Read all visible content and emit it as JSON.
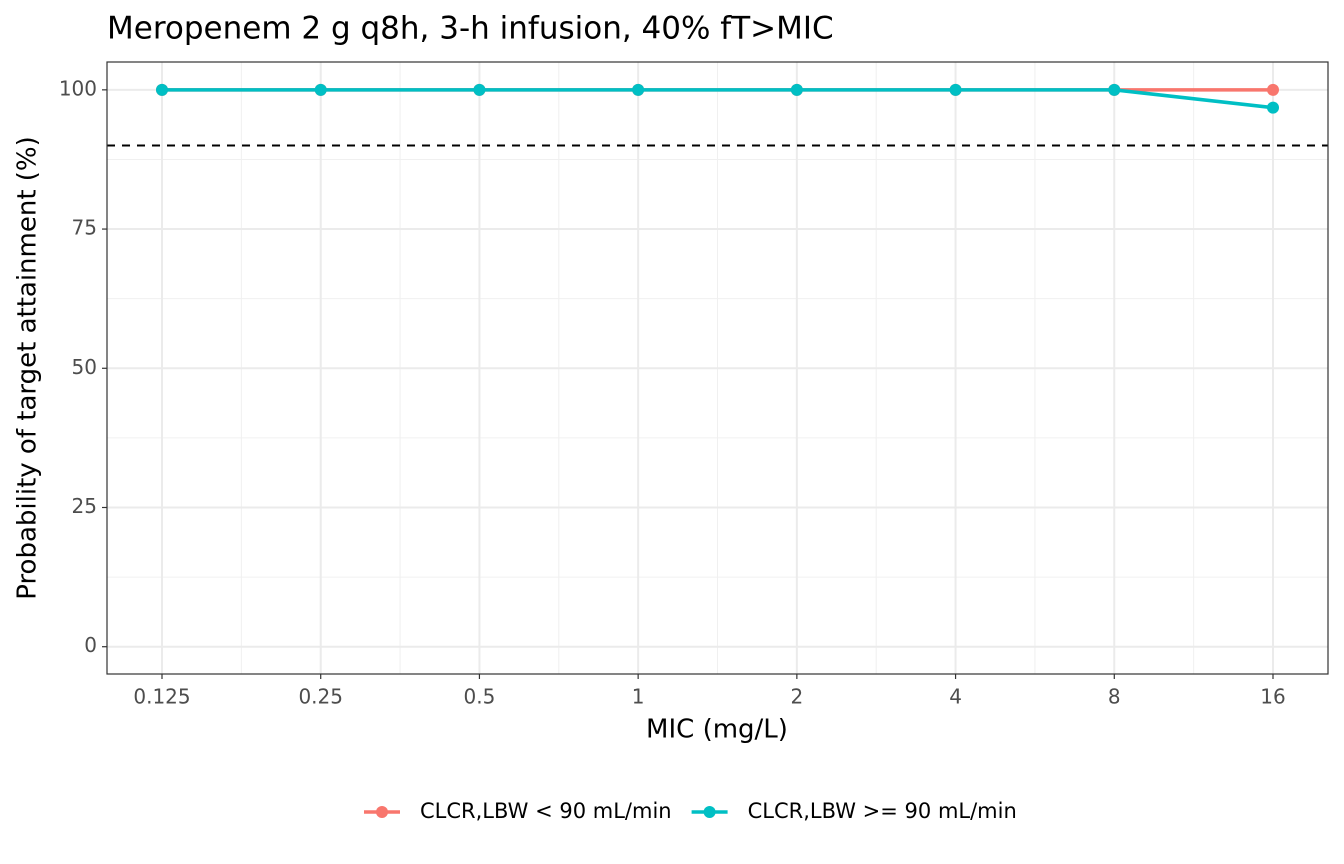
{
  "chart_data": {
    "type": "line",
    "title": "Meropenem 2 g q8h, 3-h infusion, 40% fT>MIC",
    "x_label": "MIC (mg/L)",
    "y_label": "Probability of target attainment (%)",
    "categories": [
      "0.125",
      "0.25",
      "0.5",
      "1",
      "2",
      "4",
      "8",
      "16"
    ],
    "series": [
      {
        "name": "CLCR,LBW < 90 mL/min",
        "color": "#F8766D",
        "values": [
          100,
          100,
          100,
          100,
          100,
          100,
          100,
          100
        ]
      },
      {
        "name": "CLCR,LBW >= 90 mL/min",
        "color": "#00BFC4",
        "values": [
          100,
          100,
          100,
          100,
          100,
          100,
          100,
          96.8
        ]
      }
    ],
    "hline": 90,
    "ylim": [
      -4.9,
      105
    ],
    "yticks": [
      0,
      25,
      50,
      75,
      100
    ],
    "grid": true,
    "legend": "bottom"
  }
}
